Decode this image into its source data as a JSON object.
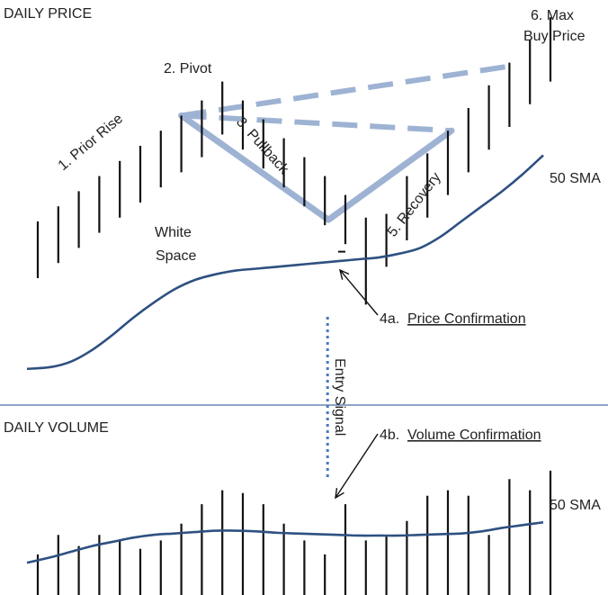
{
  "panels": {
    "price_title": "DAILY PRICE",
    "volume_title": "DAILY VOLUME"
  },
  "labels": {
    "prior_rise": "1. Prior Rise",
    "pivot": "2. Pivot",
    "pullback": "3. Pullback",
    "price_confirmation_prefix": "4a.",
    "price_confirmation": "Price Confirmation",
    "volume_confirmation_prefix": "4b.",
    "volume_confirmation": "Volume Confirmation",
    "recovery": "5. Recovery",
    "max_line1": "6. Max",
    "max_line2": "Buy Price",
    "white_line1": "White",
    "white_line2": "Space",
    "sma_price": "50 SMA",
    "sma_volume": "50 SMA",
    "entry_signal": "Entry Signal"
  },
  "colors": {
    "bars": "#111111",
    "sma_line": "#2e5081",
    "pattern_line": "#9eb3d3",
    "entry_dots": "#4a78c2",
    "divider": "#4a6fa5",
    "arrow": "#111111"
  },
  "chart_data": {
    "type": "diagram",
    "price_bars": [
      {
        "low": 1,
        "high": 4
      },
      {
        "low": 1.8,
        "high": 4.8
      },
      {
        "low": 2.6,
        "high": 5.6
      },
      {
        "low": 3.4,
        "high": 6.4
      },
      {
        "low": 4.2,
        "high": 7.2
      },
      {
        "low": 5,
        "high": 8
      },
      {
        "low": 5.8,
        "high": 8.8
      },
      {
        "low": 6.6,
        "high": 9.6
      },
      {
        "low": 7.4,
        "high": 10.4
      },
      {
        "low": 8.6,
        "high": 11.4
      },
      {
        "low": 7.8,
        "high": 10.4
      },
      {
        "low": 6.8,
        "high": 9.4
      },
      {
        "low": 5.8,
        "high": 8.4
      },
      {
        "low": 4.8,
        "high": 7.4
      },
      {
        "low": 3.8,
        "high": 6.4
      },
      {
        "low": 2.8,
        "high": 5.4
      },
      {
        "low": -0.4,
        "high": 4.2
      },
      {
        "low": 1.6,
        "high": 4.4
      },
      {
        "low": 3,
        "high": 6.4
      },
      {
        "low": 4.2,
        "high": 7.6
      },
      {
        "low": 5.4,
        "high": 8.8
      },
      {
        "low": 6.6,
        "high": 10
      },
      {
        "low": 7.8,
        "high": 11.2
      },
      {
        "low": 9,
        "high": 12.4
      },
      {
        "low": 10.2,
        "high": 13.6
      },
      {
        "low": 11.4,
        "high": 14.8
      }
    ],
    "volume_bars": [
      2.2,
      3.6,
      2.8,
      3.6,
      3.2,
      2.6,
      3.2,
      4.4,
      5.8,
      6.8,
      6.6,
      5.8,
      4.4,
      3.2,
      2.2,
      5.8,
      3.2,
      3.6,
      4.6,
      6.4,
      6.8,
      6.4,
      3.6,
      7.6,
      6.8,
      8.2
    ],
    "price_sma": [
      -3.8,
      -3.7,
      -3.4,
      -2.8,
      -2.0,
      -1.1,
      -0.3,
      0.4,
      0.9,
      1.2,
      1.4,
      1.5,
      1.6,
      1.7,
      1.8,
      1.9,
      2.0,
      2.1,
      2.3,
      2.6,
      3.2,
      4.0,
      4.8,
      5.6,
      6.5,
      7.5
    ],
    "volume_sma": [
      1.6,
      2.0,
      2.4,
      2.8,
      3.1,
      3.4,
      3.6,
      3.7,
      3.8,
      3.9,
      3.9,
      3.85,
      3.75,
      3.7,
      3.65,
      3.6,
      3.55,
      3.55,
      3.55,
      3.6,
      3.65,
      3.7,
      3.85,
      4.1,
      4.3,
      4.5
    ]
  }
}
